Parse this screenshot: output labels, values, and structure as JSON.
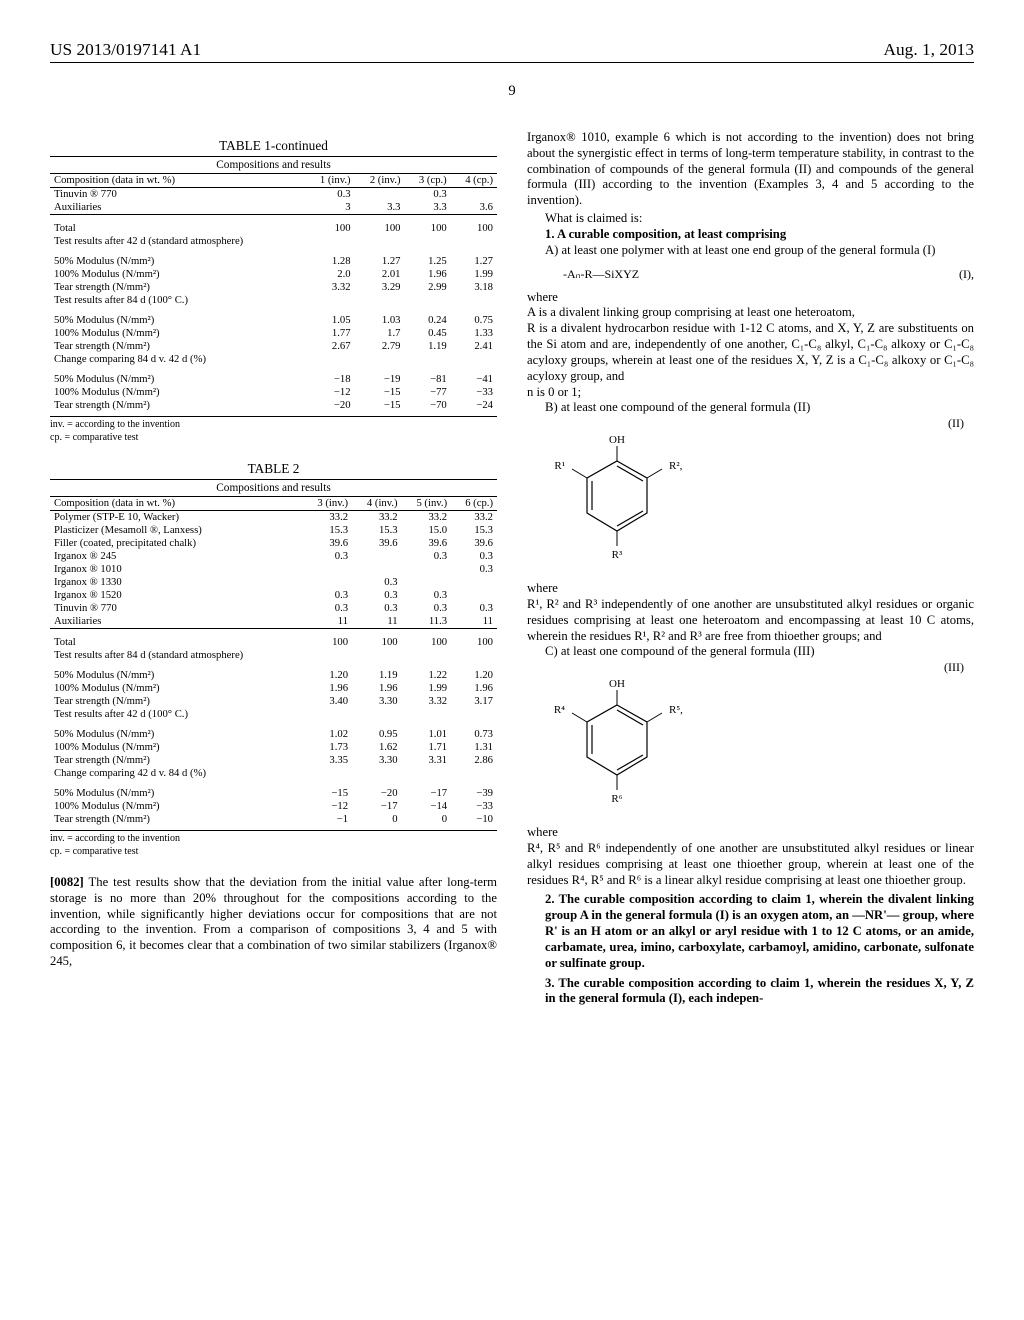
{
  "header": {
    "pub_no": "US 2013/0197141 A1",
    "date": "Aug. 1, 2013",
    "page": "9"
  },
  "table1": {
    "title": "TABLE 1-continued",
    "subtitle": "Compositions and results",
    "head_label": "Composition (data in wt. %)",
    "cols": [
      "1 (inv.)",
      "2 (inv.)",
      "3 (cp.)",
      "4 (cp.)"
    ],
    "rows": [
      {
        "label": "Tinuvin ® 770",
        "v": [
          "0.3",
          "",
          "0.3",
          ""
        ]
      },
      {
        "label": "Auxiliaries",
        "v": [
          "3",
          "3.3",
          "3.3",
          "3.6"
        ],
        "underline": true
      },
      {
        "label": "Total",
        "v": [
          "100",
          "100",
          "100",
          "100"
        ],
        "section": true
      },
      {
        "label": "Test results after 42 d (standard atmosphere)",
        "v": [
          "",
          "",
          "",
          ""
        ]
      },
      {
        "label": "50% Modulus (N/mm²)",
        "v": [
          "1.28",
          "1.27",
          "1.25",
          "1.27"
        ],
        "section": true
      },
      {
        "label": "100% Modulus (N/mm²)",
        "v": [
          "2.0",
          "2.01",
          "1.96",
          "1.99"
        ]
      },
      {
        "label": "Tear strength (N/mm²)",
        "v": [
          "3.32",
          "3.29",
          "2.99",
          "3.18"
        ]
      },
      {
        "label": "Test results after 84 d (100° C.)",
        "v": [
          "",
          "",
          "",
          ""
        ]
      },
      {
        "label": "50% Modulus (N/mm²)",
        "v": [
          "1.05",
          "1.03",
          "0.24",
          "0.75"
        ],
        "section": true
      },
      {
        "label": "100% Modulus (N/mm²)",
        "v": [
          "1.77",
          "1.7",
          "0.45",
          "1.33"
        ]
      },
      {
        "label": "Tear strength (N/mm²)",
        "v": [
          "2.67",
          "2.79",
          "1.19",
          "2.41"
        ]
      },
      {
        "label": "Change comparing 84 d v. 42 d (%)",
        "v": [
          "",
          "",
          "",
          ""
        ]
      },
      {
        "label": "50% Modulus (N/mm²)",
        "v": [
          "−18",
          "−19",
          "−81",
          "−41"
        ],
        "section": true
      },
      {
        "label": "100% Modulus (N/mm²)",
        "v": [
          "−12",
          "−15",
          "−77",
          "−33"
        ]
      },
      {
        "label": "Tear strength (N/mm²)",
        "v": [
          "−20",
          "−15",
          "−70",
          "−24"
        ]
      }
    ],
    "foot1": "inv. = according to the invention",
    "foot2": "cp. = comparative test"
  },
  "table2": {
    "title": "TABLE 2",
    "subtitle": "Compositions and results",
    "head_label": "Composition (data in wt. %)",
    "cols": [
      "3 (inv.)",
      "4 (inv.)",
      "5 (inv.)",
      "6 (cp.)"
    ],
    "rows": [
      {
        "label": "Polymer (STP-E 10, Wacker)",
        "v": [
          "33.2",
          "33.2",
          "33.2",
          "33.2"
        ]
      },
      {
        "label": "Plasticizer (Mesamoll ®, Lanxess)",
        "v": [
          "15.3",
          "15.3",
          "15.0",
          "15.3"
        ]
      },
      {
        "label": "Filler (coated, precipitated chalk)",
        "v": [
          "39.6",
          "39.6",
          "39.6",
          "39.6"
        ]
      },
      {
        "label": "Irganox ® 245",
        "v": [
          "0.3",
          "",
          "0.3",
          "0.3"
        ]
      },
      {
        "label": "Irganox ® 1010",
        "v": [
          "",
          "",
          "",
          "0.3"
        ]
      },
      {
        "label": "Irganox ® 1330",
        "v": [
          "",
          "0.3",
          "",
          ""
        ]
      },
      {
        "label": "Irganox ® 1520",
        "v": [
          "0.3",
          "0.3",
          "0.3",
          ""
        ]
      },
      {
        "label": "Tinuvin ® 770",
        "v": [
          "0.3",
          "0.3",
          "0.3",
          "0.3"
        ]
      },
      {
        "label": "Auxiliaries",
        "v": [
          "11",
          "11",
          "11.3",
          "11"
        ],
        "underline": true
      },
      {
        "label": "Total",
        "v": [
          "100",
          "100",
          "100",
          "100"
        ],
        "section": true
      },
      {
        "label": "Test results after 84 d (standard atmosphere)",
        "v": [
          "",
          "",
          "",
          ""
        ]
      },
      {
        "label": "50% Modulus (N/mm²)",
        "v": [
          "1.20",
          "1.19",
          "1.22",
          "1.20"
        ],
        "section": true
      },
      {
        "label": "100% Modulus (N/mm²)",
        "v": [
          "1.96",
          "1.96",
          "1.99",
          "1.96"
        ]
      },
      {
        "label": "Tear strength (N/mm²)",
        "v": [
          "3.40",
          "3.30",
          "3.32",
          "3.17"
        ]
      },
      {
        "label": "Test results after 42 d (100° C.)",
        "v": [
          "",
          "",
          "",
          ""
        ]
      },
      {
        "label": "50% Modulus (N/mm²)",
        "v": [
          "1.02",
          "0.95",
          "1.01",
          "0.73"
        ],
        "section": true
      },
      {
        "label": "100% Modulus (N/mm²)",
        "v": [
          "1.73",
          "1.62",
          "1.71",
          "1.31"
        ]
      },
      {
        "label": "Tear strength (N/mm²)",
        "v": [
          "3.35",
          "3.30",
          "3.31",
          "2.86"
        ]
      },
      {
        "label": "Change comparing 42 d v. 84 d (%)",
        "v": [
          "",
          "",
          "",
          ""
        ]
      },
      {
        "label": "50% Modulus (N/mm²)",
        "v": [
          "−15",
          "−20",
          "−17",
          "−39"
        ],
        "section": true
      },
      {
        "label": "100% Modulus (N/mm²)",
        "v": [
          "−12",
          "−17",
          "−14",
          "−33"
        ]
      },
      {
        "label": "Tear strength (N/mm²)",
        "v": [
          "−1",
          "0",
          "0",
          "−10"
        ]
      }
    ],
    "foot1": "inv. = according to the invention",
    "foot2": "cp. = comparative test"
  },
  "para82": {
    "num": "[0082]",
    "text": "The test results show that the deviation from the initial value after long-term storage is no more than 20% throughout for the compositions according to the invention, while significantly higher deviations occur for compositions that are not according to the invention. From a comparison of compositions 3, 4 and 5 with composition 6, it becomes clear that a combination of two similar stabilizers (Irganox® 245,"
  },
  "right_col": {
    "intro": "Irganox® 1010, example 6 which is not according to the invention) does not bring about the synergistic effect in terms of long-term temperature stability, in contrast to the combination of compounds of the general formula (II) and compounds of the general formula (III) according to the invention (Examples 3, 4 and 5 according to the invention).",
    "what_claimed": "What is claimed is:",
    "claim1_lead": "1. A curable composition, at least comprising",
    "claim1_A": "A) at least one polymer with at least one end group of the general formula (I)",
    "formula_I": "-Aₙ-R—SiXYZ",
    "formula_I_tag": "(I),",
    "where": "where",
    "A_def": "A is a divalent linking group comprising at least one heteroatom,",
    "R_def": "R is a divalent hydrocarbon residue with 1-12 C atoms, and X, Y, Z are substituents on the Si atom and are, independently of one another, C₁-C₈ alkyl, C₁-C₈ alkoxy or C₁-C₈ acyloxy groups, wherein at least one of the residues X, Y, Z is a C₁-C₈ alkoxy or C₁-C₈ acyloxy group, and",
    "n_def": "n is 0 or 1;",
    "claim1_B": "B) at least one compound of the general formula (II)",
    "formula_II_tag": "(II)",
    "where2": "where",
    "R123_def": "R¹, R² and R³ independently of one another are unsubstituted alkyl residues or organic residues comprising at least one heteroatom and encompassing at least 10 C atoms, wherein the residues R¹, R² and R³ are free from thioether groups; and",
    "claim1_C": "C) at least one compound of the general formula (III)",
    "formula_III_tag": "(III)",
    "where3": "where",
    "R456_def": "R⁴, R⁵ and R⁶ independently of one another are unsubstituted alkyl residues or linear alkyl residues comprising at least one thioether group, wherein at least one of the residues R⁴, R⁵ and R⁶ is a linear alkyl residue comprising at least one thioether group.",
    "claim2": "2. The curable composition according to claim 1, wherein the divalent linking group A in the general formula (I) is an oxygen atom, an —NR'— group, where R' is an H atom or an alkyl or aryl residue with 1 to 12 C atoms, or an amide, carbamate, urea, imino, carboxylate, carbamoyl, amidino, carbonate, sulfonate or sulfinate group.",
    "claim3": "3. The curable composition according to claim 1, wherein the residues X, Y, Z in the general formula (I), each indepen-",
    "struct_II": {
      "top": "OH",
      "left": "R¹",
      "right": "R²",
      "bottom": "R³"
    },
    "struct_III": {
      "top": "OH",
      "left": "R⁴",
      "right": "R⁵",
      "bottom": "R⁶"
    }
  }
}
